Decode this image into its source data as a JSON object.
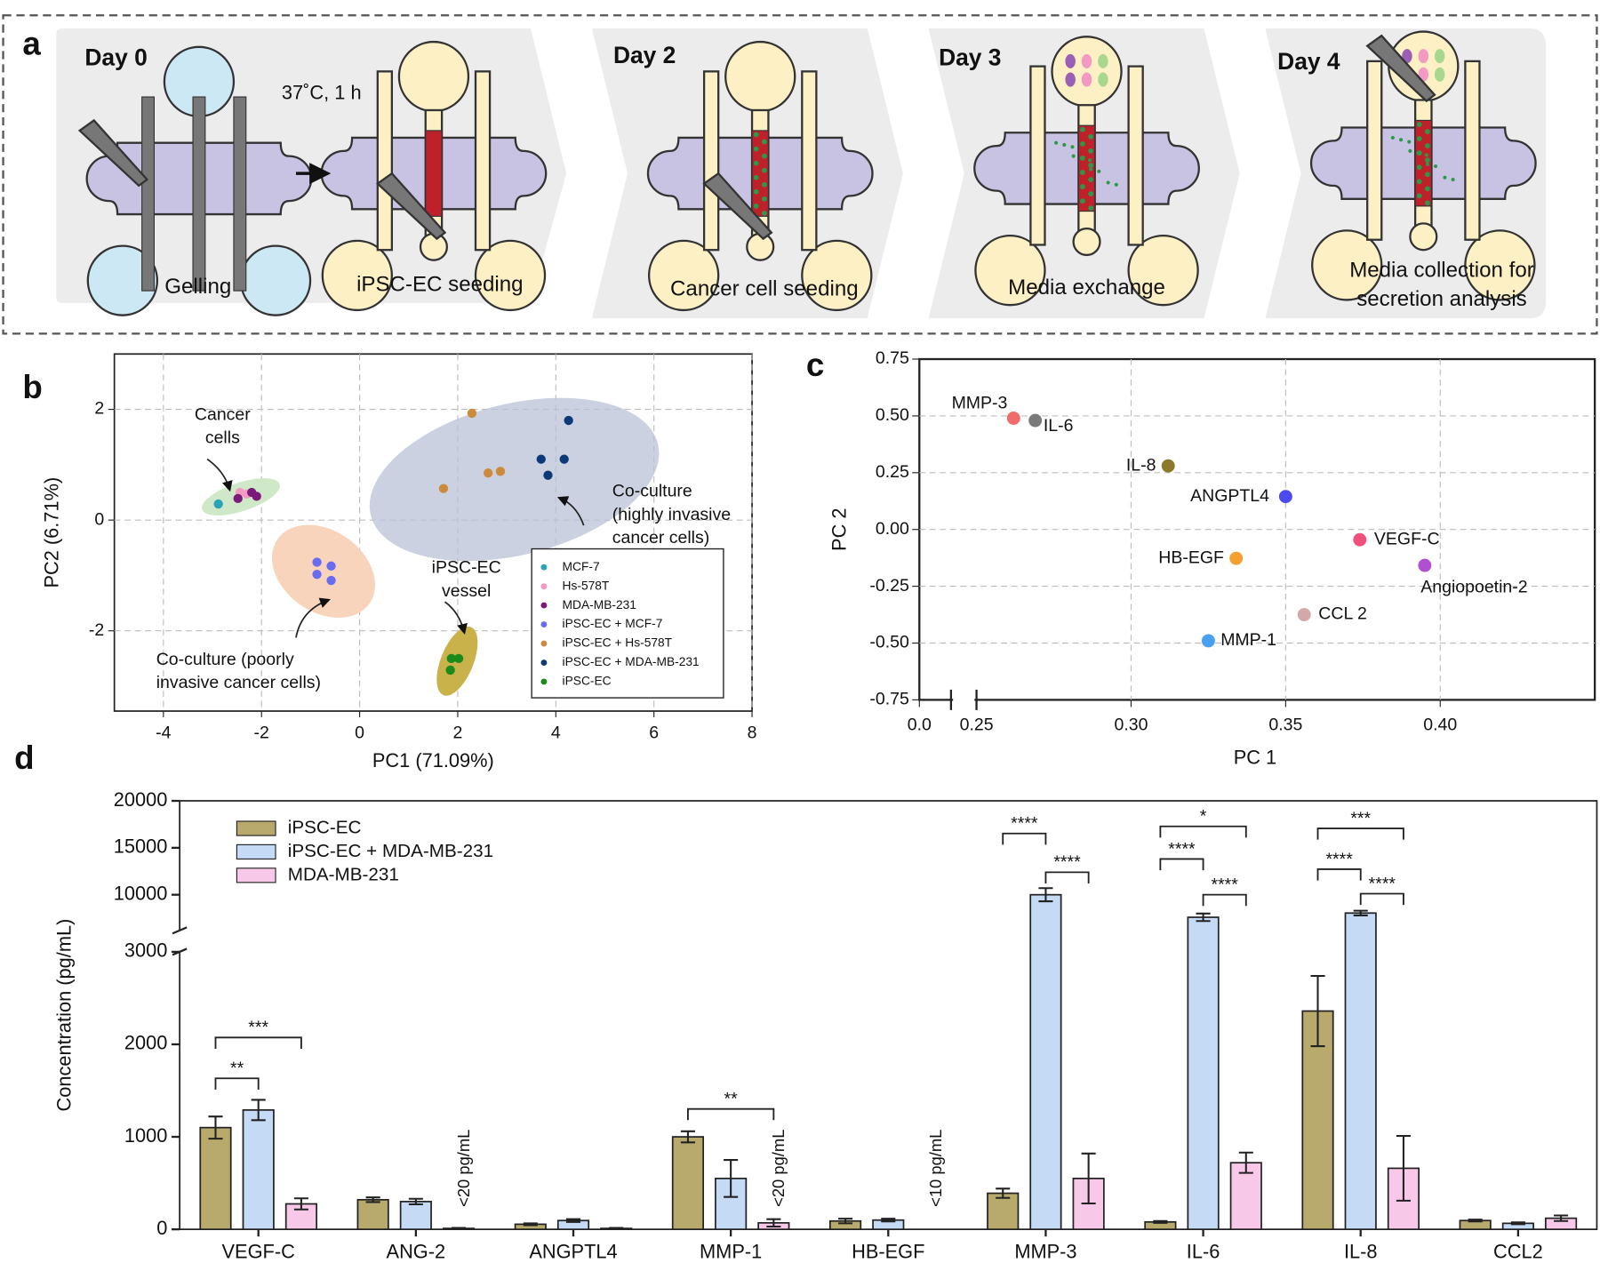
{
  "panel_labels": [
    "a",
    "b",
    "c",
    "d"
  ],
  "panel_a": {
    "steps": [
      {
        "day": "Day 0",
        "caption": [
          "Gelling"
        ]
      },
      {
        "note": "37˚C, 1 h",
        "caption": [
          "iPSC-EC seeding"
        ]
      },
      {
        "day": "Day 2",
        "caption": [
          "Cancer cell  seeding"
        ]
      },
      {
        "day": "Day 3",
        "caption": [
          "Media exchange"
        ]
      },
      {
        "day": "Day 4",
        "caption": [
          "Media collection for",
          "secretion analysis"
        ]
      }
    ]
  },
  "chart_data": [
    {
      "type": "scatter",
      "xlabel": "PC1 (71.09%)",
      "ylabel": "PC2 (6.71%)",
      "xlim": [
        -5,
        8
      ],
      "ylim": [
        -3.45,
        3.0
      ],
      "xticks": [
        -4,
        -2,
        0,
        2,
        4,
        6,
        8
      ],
      "yticks": [
        -2,
        0,
        2
      ],
      "grid": true,
      "legend": "lower right",
      "series": [
        {
          "name": "MCF-7",
          "color": "#2aa3b8",
          "x": [
            -2.88
          ],
          "y": [
            0.29
          ]
        },
        {
          "name": "Hs-578T",
          "color": "#f29ac4",
          "x": [
            -2.44,
            -2.3
          ],
          "y": [
            0.5,
            0.47
          ]
        },
        {
          "name": "MDA-MB-231",
          "color": "#7b1a7a",
          "x": [
            -2.48,
            -2.2,
            -2.1
          ],
          "y": [
            0.39,
            0.5,
            0.43
          ]
        },
        {
          "name": "iPSC-EC +  MCF-7",
          "color": "#6a6cf0",
          "x": [
            -0.87,
            -0.58,
            -0.87,
            -0.58
          ],
          "y": [
            -0.76,
            -0.83,
            -0.98,
            -1.09
          ]
        },
        {
          "name": "iPSC-EC + Hs-578T",
          "color": "#cc8b3c",
          "x": [
            2.29,
            1.71,
            2.62,
            2.87
          ],
          "y": [
            1.93,
            0.57,
            0.85,
            0.88
          ]
        },
        {
          "name": "iPSC-EC + MDA-MB-231",
          "color": "#0c3a78",
          "x": [
            4.26,
            3.7,
            4.17,
            3.84
          ],
          "y": [
            1.8,
            1.1,
            1.1,
            0.81
          ]
        },
        {
          "name": "iPSC-EC",
          "color": "#1a8a1a",
          "x": [
            1.87,
            2.02,
            1.85
          ],
          "y": [
            -2.5,
            -2.5,
            -2.71
          ]
        }
      ],
      "annotations": [
        {
          "text": [
            "Cancer",
            "cells"
          ]
        },
        {
          "text": [
            "Co-culture",
            "(highly invasive",
            "cancer cells)"
          ]
        },
        {
          "text": [
            "iPSC-EC",
            "vessel"
          ]
        },
        {
          "text": [
            "Co-culture (poorly",
            "invasive cancer cells)"
          ]
        }
      ]
    },
    {
      "type": "scatter",
      "xlabel": "PC 1",
      "ylabel": "PC 2",
      "xlim": [
        0,
        0.45
      ],
      "xbreak": [
        0,
        0.25
      ],
      "ylim": [
        -0.75,
        0.75
      ],
      "xticks": [
        {
          "value": 0,
          "label": "0.0"
        },
        0.25,
        {
          "value": 0.3,
          "label": "0.30"
        },
        0.35,
        {
          "value": 0.4,
          "label": "0.40"
        }
      ],
      "yticks": [
        0.75,
        {
          "value": 0.5,
          "label": "0.50"
        },
        0.25,
        {
          "value": 0,
          "label": "0.00"
        },
        -0.25,
        {
          "value": -0.5,
          "label": "-0.50"
        },
        -0.75
      ],
      "grid": true,
      "points": [
        {
          "label": "MMP-3",
          "x": 0.262,
          "y": 0.49,
          "color": "#f26b6b"
        },
        {
          "label": "IL-6",
          "x": 0.269,
          "y": 0.48,
          "color": "#7a7a7a"
        },
        {
          "label": "IL-8",
          "x": 0.312,
          "y": 0.28,
          "color": "#8a7a2a"
        },
        {
          "label": "ANGPTL4",
          "x": 0.35,
          "y": 0.145,
          "color": "#4a4af0"
        },
        {
          "label": "VEGF-C",
          "x": 0.374,
          "y": -0.045,
          "color": "#f0507a"
        },
        {
          "label": "HB-EGF",
          "x": 0.334,
          "y": -0.127,
          "color": "#f5a030"
        },
        {
          "label": "Angiopoetin-2",
          "x": 0.395,
          "y": -0.158,
          "color": "#b050d0"
        },
        {
          "label": "CCL 2",
          "x": 0.356,
          "y": -0.375,
          "color": "#d4a8a8"
        },
        {
          "label": "MMP-1",
          "x": 0.325,
          "y": -0.49,
          "color": "#4aa0f0"
        }
      ]
    },
    {
      "type": "bar",
      "ylabel": "Concentration (pg/mL)",
      "categories": [
        "VEGF-C",
        "ANG-2",
        "ANGPTL4",
        "MMP-1",
        "HB-EGF",
        "MMP-3",
        "IL-6",
        "IL-8",
        "CCL2"
      ],
      "ylim": [
        0,
        20000
      ],
      "ybreak": [
        3000,
        6200
      ],
      "yticks": [
        0,
        1000,
        2000,
        3000,
        10000,
        15000,
        20000
      ],
      "legend": "upper left",
      "series": [
        {
          "name": "iPSC-EC",
          "color": "#b8a96c",
          "values": [
            1100,
            320,
            55,
            1000,
            90,
            390,
            80,
            2360,
            95
          ],
          "errors": [
            120,
            25,
            10,
            60,
            25,
            50,
            10,
            380,
            10
          ]
        },
        {
          "name": "iPSC-EC + MDA-MB-231",
          "color": "#c5daf5",
          "values": [
            1290,
            300,
            95,
            550,
            100,
            10000,
            7600,
            8050,
            65
          ],
          "errors": [
            110,
            30,
            15,
            200,
            15,
            700,
            400,
            250,
            10
          ]
        },
        {
          "name": "MDA-MB-231",
          "color": "#f7c8e8",
          "values": [
            275,
            10,
            10,
            70,
            null,
            550,
            720,
            660,
            120
          ],
          "errors": [
            60,
            5,
            5,
            40,
            null,
            270,
            110,
            350,
            30
          ]
        }
      ],
      "annotations": [
        {
          "text": "<20 pg/mL"
        },
        {
          "text": "<20 pg/mL"
        },
        {
          "text": "<10 pg/mL"
        }
      ],
      "significance": [
        {
          "label": "***"
        },
        {
          "label": "**"
        },
        {
          "label": "**"
        },
        {
          "label": "****"
        },
        {
          "label": "****"
        },
        {
          "label": "*"
        },
        {
          "label": "****"
        },
        {
          "label": "****"
        },
        {
          "label": "***"
        },
        {
          "label": "****"
        },
        {
          "label": "****"
        }
      ]
    }
  ]
}
